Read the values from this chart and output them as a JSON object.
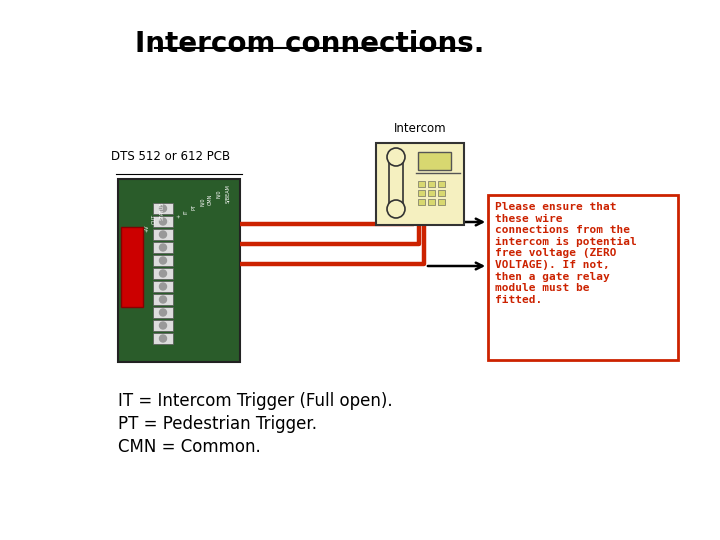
{
  "title": "Intercom connections.",
  "title_fontsize": 20,
  "background_color": "#ffffff",
  "pcb_label": "DTS 512 or 612 PCB",
  "intercom_label": "Intercom",
  "note_text": "Please ensure that\nthese wire\nconnections from the\nintercom is potential\nfree voltage (ZERO\nVOLTAGE). If not,\nthen a gate relay\nmodule must be\nfitted.",
  "bottom_labels": [
    "IT = Intercom Trigger (Full open).",
    "PT = Pedestrian Trigger.",
    "CMN = Common."
  ],
  "orange_color": "#cc2200",
  "cream_color": "#f5f0c0",
  "pcb_green": "#2a5c2a",
  "black": "#000000"
}
